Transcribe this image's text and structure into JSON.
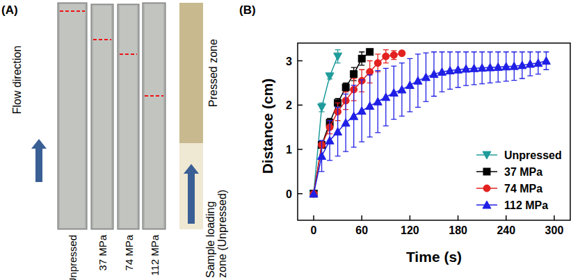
{
  "panel_a": {
    "label": "(A)",
    "arrow_label": "Flow direction",
    "strips": [
      "Unpressed",
      "37 MPa",
      "74 MPa",
      "112 MPa"
    ],
    "pressed_zone": "Pressed zone",
    "loading_zone": [
      "Sample loading",
      "zone (Unpressed)"
    ]
  },
  "chart_data": {
    "type": "line",
    "title": "(B)",
    "x_label": "Time (s)",
    "y_label": "Distance (cm)",
    "xlim": [
      -20,
      320
    ],
    "xticks": [
      0,
      60,
      120,
      180,
      240,
      300
    ],
    "ylim": [
      -0.6,
      3.4
    ],
    "yticks": [
      0,
      1,
      2,
      3
    ],
    "legend": "lower right",
    "series": [
      {
        "name": "Unpressed",
        "color": "#1f9b9b",
        "marker": "triangle-down",
        "line_style": "solid",
        "x": [
          0,
          10,
          20,
          30
        ],
        "values": [
          0,
          1.95,
          2.65,
          3.1
        ],
        "errors": [
          null,
          0.1,
          0.06,
          0.15
        ]
      },
      {
        "name": "37 MPa",
        "color": "#000000",
        "marker": "square",
        "line_style": "solid",
        "x": [
          0,
          10,
          20,
          30,
          40,
          50,
          60,
          70
        ],
        "values": [
          0,
          1.1,
          1.6,
          2.05,
          2.4,
          2.7,
          3.05,
          3.2
        ],
        "errors": [
          null,
          0.05,
          0.1,
          0.1,
          0.1,
          0.15,
          0.15,
          0.05
        ]
      },
      {
        "name": "74 MPa",
        "color": "#e3211f",
        "marker": "circle",
        "line_style": "solid",
        "x": [
          0,
          10,
          20,
          30,
          40,
          50,
          60,
          70,
          80,
          90,
          100,
          110
        ],
        "values": [
          0,
          1.1,
          1.5,
          1.85,
          2.1,
          2.35,
          2.55,
          2.75,
          2.95,
          3.1,
          3.13,
          3.17
        ],
        "errors": [
          null,
          0.05,
          0.15,
          0.2,
          0.2,
          0.25,
          0.25,
          0.25,
          0.2,
          0.15,
          0.1,
          0.05
        ]
      },
      {
        "name": "112 MPa",
        "color": "#1f1fe6",
        "marker": "triangle-up",
        "line_style": "solid",
        "x": [
          0,
          10,
          20,
          30,
          40,
          50,
          60,
          70,
          80,
          90,
          100,
          110,
          120,
          130,
          140,
          150,
          160,
          170,
          180,
          190,
          200,
          210,
          220,
          230,
          240,
          250,
          260,
          270,
          280,
          290
        ],
        "values": [
          0,
          0.85,
          1.2,
          1.4,
          1.6,
          1.75,
          1.87,
          1.98,
          2.08,
          2.18,
          2.28,
          2.35,
          2.45,
          2.55,
          2.63,
          2.7,
          2.75,
          2.78,
          2.8,
          2.82,
          2.83,
          2.84,
          2.85,
          2.86,
          2.87,
          2.88,
          2.9,
          2.93,
          2.95,
          3.0
        ],
        "errors": [
          null,
          0.35,
          0.45,
          0.55,
          0.65,
          0.7,
          0.7,
          0.7,
          0.7,
          0.65,
          0.6,
          0.6,
          0.6,
          0.6,
          0.55,
          0.5,
          0.45,
          0.42,
          0.4,
          0.38,
          0.37,
          0.36,
          0.35,
          0.34,
          0.33,
          0.32,
          0.3,
          0.27,
          0.25,
          0.2
        ]
      }
    ]
  }
}
